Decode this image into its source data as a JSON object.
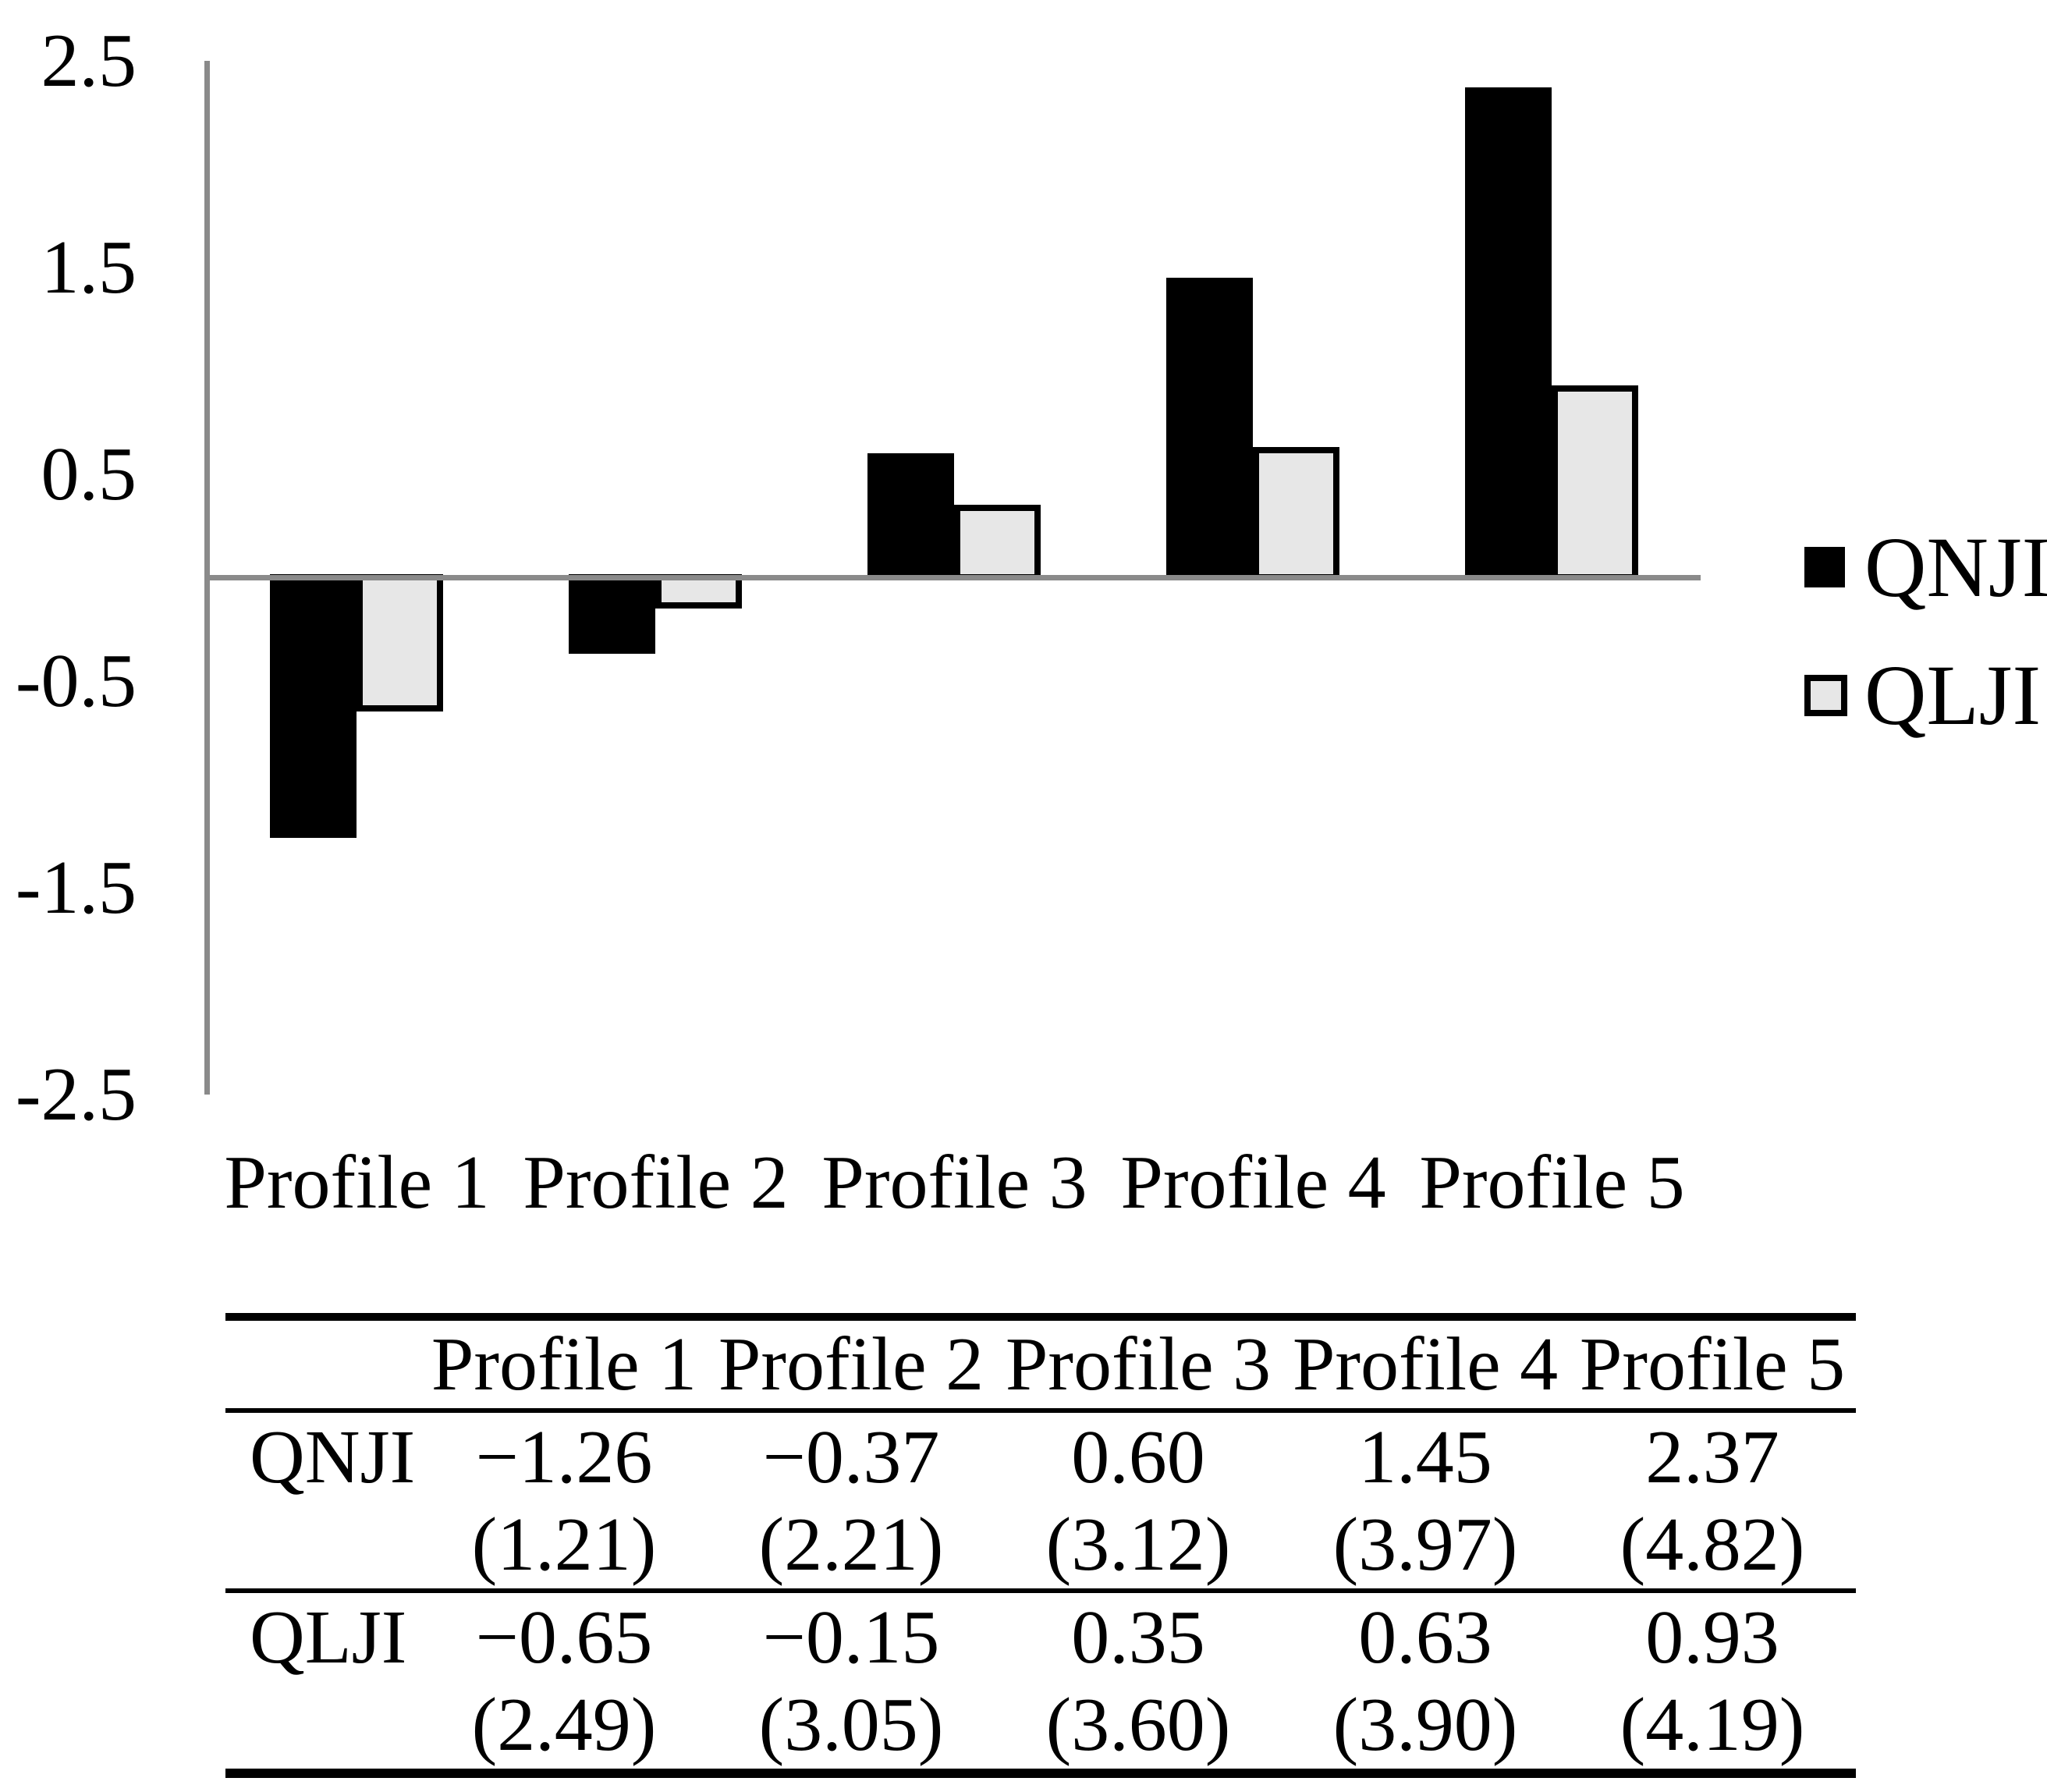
{
  "figure": {
    "background": "#ffffff",
    "axis_color": "#8a8a8a",
    "bar_black": "#000000",
    "bar_gray": "#e7e7e7"
  },
  "chart_data": {
    "type": "bar",
    "categories": [
      "Profile 1",
      "Profile 2",
      "Profile 3",
      "Profile 4",
      "Profile 5"
    ],
    "series": [
      {
        "name": "QNJI",
        "values": [
          -1.26,
          -0.37,
          0.6,
          1.45,
          2.37
        ],
        "color": "#000000",
        "style": "filled"
      },
      {
        "name": "QLJI",
        "values": [
          -0.65,
          -0.15,
          0.35,
          0.63,
          0.93
        ],
        "color": "#e7e7e7",
        "border": "#000000",
        "style": "outlined"
      }
    ],
    "title": "",
    "xlabel": "",
    "ylabel": "",
    "ylim": [
      -2.5,
      2.5
    ],
    "grid": false,
    "legend_position": "right",
    "y_ticks": [
      {
        "value": 2.5,
        "label": "2.5"
      },
      {
        "value": 1.5,
        "label": "1.5"
      },
      {
        "value": 0.5,
        "label": "0.5"
      },
      {
        "value": -0.5,
        "label": "-0.5"
      },
      {
        "value": -1.5,
        "label": "-1.5"
      },
      {
        "value": -2.5,
        "label": "-2.5"
      }
    ]
  },
  "legend": {
    "items": [
      {
        "label": "QNJI",
        "swatch": "black-filled-square"
      },
      {
        "label": "QLJI",
        "swatch": "gray-outlined-square"
      }
    ]
  },
  "table": {
    "col_headers": [
      "",
      "Profile 1",
      "Profile 2",
      "Profile 3",
      "Profile 4",
      "Profile 5"
    ],
    "rows": [
      {
        "label": "QNJI",
        "values": [
          "−1.26",
          "−0.37",
          "0.60",
          "1.45",
          "2.37"
        ],
        "se": [
          "(1.21)",
          "(2.21)",
          "(3.12)",
          "(3.97)",
          "(4.82)"
        ]
      },
      {
        "label": "QLJI",
        "values": [
          "−0.65",
          "−0.15",
          "0.35",
          "0.63",
          "0.93"
        ],
        "se": [
          "(2.49)",
          "(3.05)",
          "(3.60)",
          "(3.90)",
          "(4.19)"
        ]
      }
    ]
  }
}
